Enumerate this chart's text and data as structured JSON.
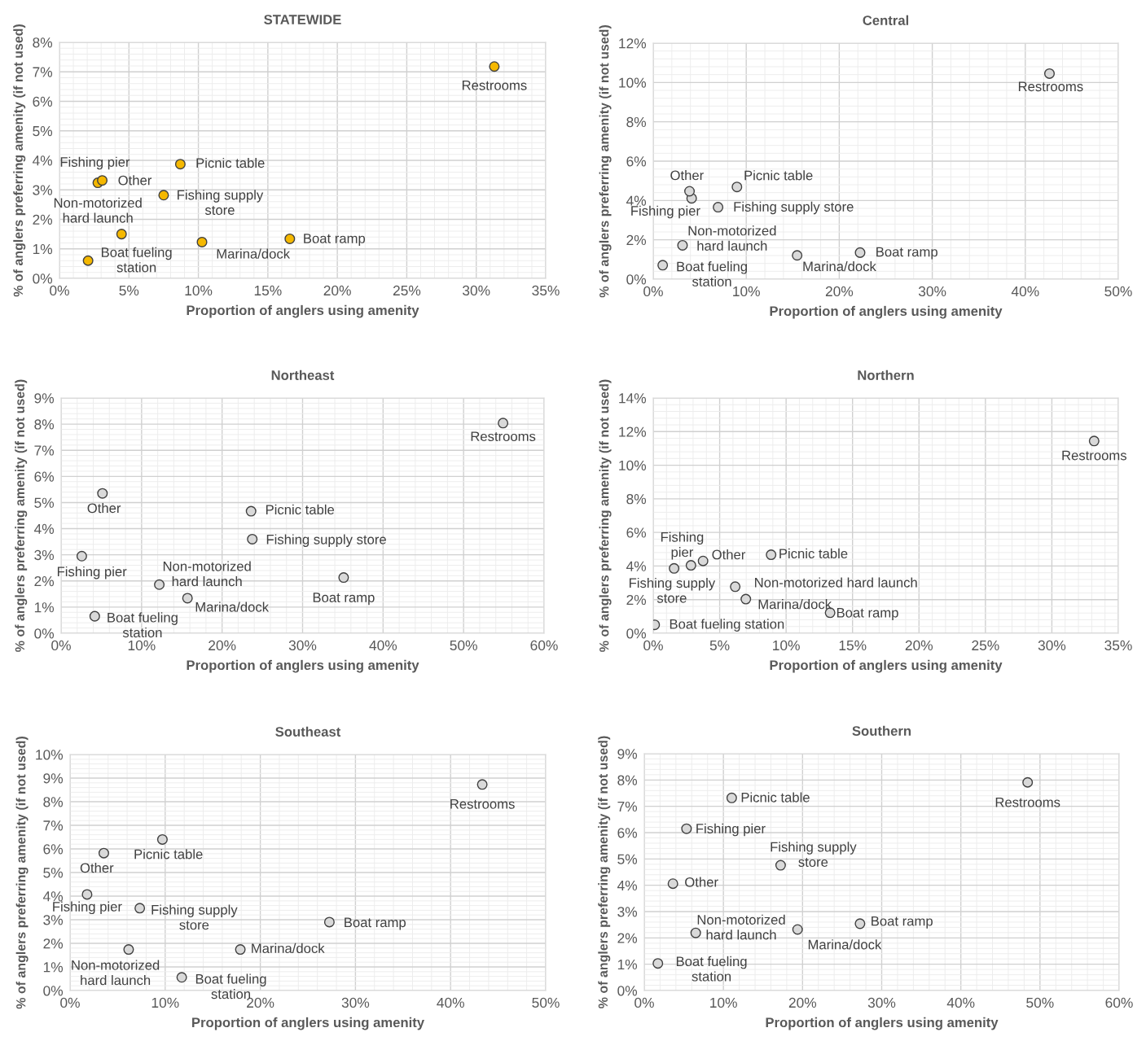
{
  "chart_data": [
    {
      "type": "scatter",
      "title": "STATEWIDE",
      "xlabel": "Proportion of anglers using amenity",
      "ylabel": "% of anglers preferring amenity (if not used)",
      "grid": true,
      "marker": "circle",
      "xlim": [
        0,
        35
      ],
      "xticks": [
        {
          "value": 0,
          "label": "0%"
        },
        {
          "value": 5,
          "label": "5%"
        },
        {
          "value": 10,
          "label": "10%"
        },
        {
          "value": 15,
          "label": "15%"
        },
        {
          "value": 20,
          "label": "20%"
        },
        {
          "value": 25,
          "label": "25%"
        },
        {
          "value": 30,
          "label": "30%"
        },
        {
          "value": 35,
          "label": "35%"
        }
      ],
      "ylim": [
        0,
        8
      ],
      "yticks": [
        {
          "value": 0,
          "label": "0%"
        },
        {
          "value": 1,
          "label": "1%"
        },
        {
          "value": 2,
          "label": "2%"
        },
        {
          "value": 3,
          "label": "3%"
        },
        {
          "value": 4,
          "label": "4%"
        },
        {
          "value": 5,
          "label": "5%"
        },
        {
          "value": 6,
          "label": "6%"
        },
        {
          "value": 7,
          "label": "7%"
        },
        {
          "value": 8,
          "label": "8%"
        }
      ],
      "series": [
        {
          "color": "#f5b800",
          "x": [
            31.3,
            8.7,
            2.76,
            3.08,
            7.5,
            4.47,
            2.06,
            10.26,
            16.58
          ],
          "values": [
            7.18,
            3.87,
            3.24,
            3.32,
            2.82,
            1.5,
            0.6,
            1.23,
            1.34
          ]
        }
      ],
      "annotations": [
        {
          "text": "Restrooms",
          "x": 31.3,
          "y": 7.18
        },
        {
          "text": "Picnic table",
          "x": 8.7,
          "y": 3.87
        },
        {
          "text": "Fishing pier",
          "x": 2.76,
          "y": 3.24
        },
        {
          "text": "Other",
          "x": 3.08,
          "y": 3.32
        },
        {
          "text": "Fishing supply\nstore",
          "x": 7.5,
          "y": 2.82
        },
        {
          "text": "Non-motorized\nhard launch",
          "x": 4.47,
          "y": 1.5
        },
        {
          "text": "Boat fueling\nstation",
          "x": 2.06,
          "y": 0.6
        },
        {
          "text": "Marina/dock",
          "x": 10.26,
          "y": 1.23
        },
        {
          "text": "Boat ramp",
          "x": 16.58,
          "y": 1.34
        }
      ]
    },
    {
      "type": "scatter",
      "title": "Central",
      "xlabel": "Proportion of anglers using amenity",
      "ylabel": "% of anglers preferring amenity (if not used)",
      "grid": true,
      "marker": "circle",
      "xlim": [
        0,
        50
      ],
      "xticks": [
        {
          "value": 0,
          "label": "0%"
        },
        {
          "value": 10,
          "label": "10%"
        },
        {
          "value": 20,
          "label": "20%"
        },
        {
          "value": 30,
          "label": "30%"
        },
        {
          "value": 40,
          "label": "40%"
        },
        {
          "value": 50,
          "label": "50%"
        }
      ],
      "ylim": [
        0,
        12
      ],
      "yticks": [
        {
          "value": 0,
          "label": "0%"
        },
        {
          "value": 2,
          "label": "2%"
        },
        {
          "value": 4,
          "label": "4%"
        },
        {
          "value": 6,
          "label": "6%"
        },
        {
          "value": 8,
          "label": "8%"
        },
        {
          "value": 10,
          "label": "10%"
        },
        {
          "value": 12,
          "label": "12%"
        }
      ],
      "series": [
        {
          "color": "#d9d9d9",
          "x": [
            42.6,
            9.0,
            4.13,
            3.9,
            6.97,
            3.15,
            1.02,
            15.47,
            22.24
          ],
          "values": [
            10.45,
            4.69,
            4.11,
            4.47,
            3.66,
            1.72,
            0.71,
            1.21,
            1.35
          ]
        }
      ],
      "annotations": [
        {
          "text": "Restrooms",
          "x": 42.6,
          "y": 10.45
        },
        {
          "text": "Picnic table",
          "x": 9.0,
          "y": 4.69
        },
        {
          "text": "Fishing pier",
          "x": 4.13,
          "y": 4.11
        },
        {
          "text": "Other",
          "x": 3.9,
          "y": 4.47
        },
        {
          "text": "Fishing supply store",
          "x": 6.97,
          "y": 3.66
        },
        {
          "text": "Non-motorized\nhard launch",
          "x": 3.15,
          "y": 1.72
        },
        {
          "text": "Boat fueling\nstation",
          "x": 1.02,
          "y": 0.71
        },
        {
          "text": "Marina/dock",
          "x": 15.47,
          "y": 1.21
        },
        {
          "text": "Boat ramp",
          "x": 22.24,
          "y": 1.35
        }
      ]
    },
    {
      "type": "scatter",
      "title": "Northeast",
      "xlabel": "Proportion of anglers using amenity",
      "ylabel": "% of anglers preferring amenity (if not used)",
      "grid": true,
      "marker": "circle",
      "xlim": [
        0,
        60
      ],
      "xticks": [
        {
          "value": 0,
          "label": "0%"
        },
        {
          "value": 10,
          "label": "10%"
        },
        {
          "value": 20,
          "label": "20%"
        },
        {
          "value": 30,
          "label": "30%"
        },
        {
          "value": 40,
          "label": "40%"
        },
        {
          "value": 50,
          "label": "50%"
        },
        {
          "value": 60,
          "label": "60%"
        }
      ],
      "ylim": [
        0,
        9
      ],
      "yticks": [
        {
          "value": 0,
          "label": "0%"
        },
        {
          "value": 1,
          "label": "1%"
        },
        {
          "value": 2,
          "label": "2%"
        },
        {
          "value": 3,
          "label": "3%"
        },
        {
          "value": 4,
          "label": "4%"
        },
        {
          "value": 5,
          "label": "5%"
        },
        {
          "value": 6,
          "label": "6%"
        },
        {
          "value": 7,
          "label": "7%"
        },
        {
          "value": 8,
          "label": "8%"
        },
        {
          "value": 9,
          "label": "9%"
        }
      ],
      "series": [
        {
          "color": "#d9d9d9",
          "x": [
            54.9,
            23.6,
            2.57,
            5.14,
            23.75,
            12.2,
            4.18,
            15.7,
            35.1
          ],
          "values": [
            8.04,
            4.67,
            2.95,
            5.35,
            3.6,
            1.86,
            0.65,
            1.34,
            2.13
          ]
        }
      ],
      "annotations": [
        {
          "text": "Restrooms",
          "x": 54.9,
          "y": 8.04
        },
        {
          "text": "Picnic table",
          "x": 23.6,
          "y": 4.67
        },
        {
          "text": "Fishing pier",
          "x": 2.57,
          "y": 2.95
        },
        {
          "text": "Other",
          "x": 5.14,
          "y": 5.35
        },
        {
          "text": "Fishing supply store",
          "x": 23.75,
          "y": 3.6
        },
        {
          "text": "Non-motorized\nhard launch",
          "x": 12.2,
          "y": 1.86
        },
        {
          "text": "Boat fueling\nstation",
          "x": 4.18,
          "y": 0.65
        },
        {
          "text": "Marina/dock",
          "x": 15.7,
          "y": 1.34
        },
        {
          "text": "Boat ramp",
          "x": 35.1,
          "y": 2.13
        }
      ]
    },
    {
      "type": "scatter",
      "title": "Northern",
      "xlabel": "Proportion of anglers using amenity",
      "ylabel": "% of anglers preferring amenity (if not used)",
      "grid": true,
      "marker": "circle",
      "xlim": [
        0,
        35
      ],
      "xticks": [
        {
          "value": 0,
          "label": "0%"
        },
        {
          "value": 5,
          "label": "5%"
        },
        {
          "value": 10,
          "label": "10%"
        },
        {
          "value": 15,
          "label": "15%"
        },
        {
          "value": 20,
          "label": "20%"
        },
        {
          "value": 25,
          "label": "25%"
        },
        {
          "value": 30,
          "label": "30%"
        },
        {
          "value": 35,
          "label": "35%"
        }
      ],
      "ylim": [
        0,
        14
      ],
      "yticks": [
        {
          "value": 0,
          "label": "0%"
        },
        {
          "value": 2,
          "label": "2%"
        },
        {
          "value": 4,
          "label": "4%"
        },
        {
          "value": 6,
          "label": "6%"
        },
        {
          "value": 8,
          "label": "8%"
        },
        {
          "value": 10,
          "label": "10%"
        },
        {
          "value": 12,
          "label": "12%"
        },
        {
          "value": 14,
          "label": "14%"
        }
      ],
      "series": [
        {
          "color": "#d9d9d9",
          "x": [
            33.18,
            8.87,
            2.84,
            3.75,
            1.57,
            6.17,
            0.11,
            6.97,
            13.31
          ],
          "values": [
            11.44,
            4.67,
            4.04,
            4.3,
            3.86,
            2.77,
            0.5,
            2.03,
            1.22
          ]
        }
      ],
      "annotations": [
        {
          "text": "Restrooms",
          "x": 33.18,
          "y": 11.44
        },
        {
          "text": "Picnic table",
          "x": 8.87,
          "y": 4.67
        },
        {
          "text": "Fishing\npier",
          "x": 2.84,
          "y": 4.04
        },
        {
          "text": "Other",
          "x": 3.75,
          "y": 4.3
        },
        {
          "text": "Fishing supply\nstore",
          "x": 1.57,
          "y": 3.86
        },
        {
          "text": "Non-motorized hard launch",
          "x": 6.17,
          "y": 2.77
        },
        {
          "text": "Boat fueling station",
          "x": 0.11,
          "y": 0.5
        },
        {
          "text": "Marina/dock",
          "x": 6.97,
          "y": 2.03
        },
        {
          "text": "Boat ramp",
          "x": 13.31,
          "y": 1.22
        }
      ]
    },
    {
      "type": "scatter",
      "title": "Southeast",
      "xlabel": "Proportion of anglers using amenity",
      "ylabel": "% of anglers preferring amenity (if not used)",
      "grid": true,
      "marker": "circle",
      "xlim": [
        0,
        50
      ],
      "xticks": [
        {
          "value": 0,
          "label": "0%"
        },
        {
          "value": 10,
          "label": "10%"
        },
        {
          "value": 20,
          "label": "20%"
        },
        {
          "value": 30,
          "label": "30%"
        },
        {
          "value": 40,
          "label": "40%"
        },
        {
          "value": 50,
          "label": "50%"
        }
      ],
      "ylim": [
        0,
        10
      ],
      "yticks": [
        {
          "value": 0,
          "label": "0%"
        },
        {
          "value": 1,
          "label": "1%"
        },
        {
          "value": 2,
          "label": "2%"
        },
        {
          "value": 3,
          "label": "3%"
        },
        {
          "value": 4,
          "label": "4%"
        },
        {
          "value": 5,
          "label": "5%"
        },
        {
          "value": 6,
          "label": "6%"
        },
        {
          "value": 7,
          "label": "7%"
        },
        {
          "value": 8,
          "label": "8%"
        },
        {
          "value": 9,
          "label": "9%"
        },
        {
          "value": 10,
          "label": "10%"
        }
      ],
      "series": [
        {
          "color": "#d9d9d9",
          "x": [
            43.33,
            9.71,
            1.79,
            3.55,
            7.33,
            6.16,
            11.74,
            17.9,
            27.26
          ],
          "values": [
            8.73,
            6.4,
            4.07,
            5.82,
            3.49,
            1.74,
            0.56,
            1.74,
            2.9
          ]
        }
      ],
      "annotations": [
        {
          "text": "Restrooms",
          "x": 43.33,
          "y": 8.73
        },
        {
          "text": "Picnic table",
          "x": 9.71,
          "y": 6.4
        },
        {
          "text": "Fishing pier",
          "x": 1.79,
          "y": 4.07
        },
        {
          "text": "Other",
          "x": 3.55,
          "y": 5.82
        },
        {
          "text": "Fishing supply\nstore",
          "x": 7.33,
          "y": 3.49
        },
        {
          "text": "Non-motorized\nhard launch",
          "x": 6.16,
          "y": 1.74
        },
        {
          "text": "Boat fueling\nstation",
          "x": 11.74,
          "y": 0.56
        },
        {
          "text": "Marina/dock",
          "x": 17.9,
          "y": 1.74
        },
        {
          "text": "Boat ramp",
          "x": 27.26,
          "y": 2.9
        }
      ]
    },
    {
      "type": "scatter",
      "title": "Southern",
      "xlabel": "Proportion of anglers using amenity",
      "ylabel": "% of anglers preferring amenity (if not used)",
      "grid": true,
      "marker": "circle",
      "xlim": [
        0,
        60
      ],
      "xticks": [
        {
          "value": 0,
          "label": "0%"
        },
        {
          "value": 10,
          "label": "10%"
        },
        {
          "value": 20,
          "label": "20%"
        },
        {
          "value": 30,
          "label": "30%"
        },
        {
          "value": 40,
          "label": "40%"
        },
        {
          "value": 50,
          "label": "50%"
        },
        {
          "value": 60,
          "label": "60%"
        }
      ],
      "ylim": [
        0,
        9
      ],
      "yticks": [
        {
          "value": 0,
          "label": "0%"
        },
        {
          "value": 1,
          "label": "1%"
        },
        {
          "value": 2,
          "label": "2%"
        },
        {
          "value": 3,
          "label": "3%"
        },
        {
          "value": 4,
          "label": "4%"
        },
        {
          "value": 5,
          "label": "5%"
        },
        {
          "value": 6,
          "label": "6%"
        },
        {
          "value": 7,
          "label": "7%"
        },
        {
          "value": 8,
          "label": "8%"
        },
        {
          "value": 9,
          "label": "9%"
        }
      ],
      "series": [
        {
          "color": "#d9d9d9",
          "x": [
            48.44,
            11.05,
            5.34,
            3.62,
            17.23,
            6.5,
            1.72,
            19.37,
            27.26
          ],
          "values": [
            7.91,
            7.32,
            6.15,
            4.06,
            4.76,
            2.19,
            1.03,
            2.32,
            2.54
          ]
        }
      ],
      "annotations": [
        {
          "text": "Restrooms",
          "x": 48.44,
          "y": 7.91
        },
        {
          "text": "Picnic table",
          "x": 11.05,
          "y": 7.32
        },
        {
          "text": "Fishing pier",
          "x": 5.34,
          "y": 6.15
        },
        {
          "text": "Other",
          "x": 3.62,
          "y": 4.06
        },
        {
          "text": "Fishing supply\nstore",
          "x": 17.23,
          "y": 4.76
        },
        {
          "text": "Non-motorized\nhard launch",
          "x": 6.5,
          "y": 2.19
        },
        {
          "text": "Boat fueling\nstation",
          "x": 1.72,
          "y": 1.03
        },
        {
          "text": "Marina/dock",
          "x": 19.37,
          "y": 2.32
        },
        {
          "text": "Boat ramp",
          "x": 27.26,
          "y": 2.54
        }
      ]
    }
  ]
}
